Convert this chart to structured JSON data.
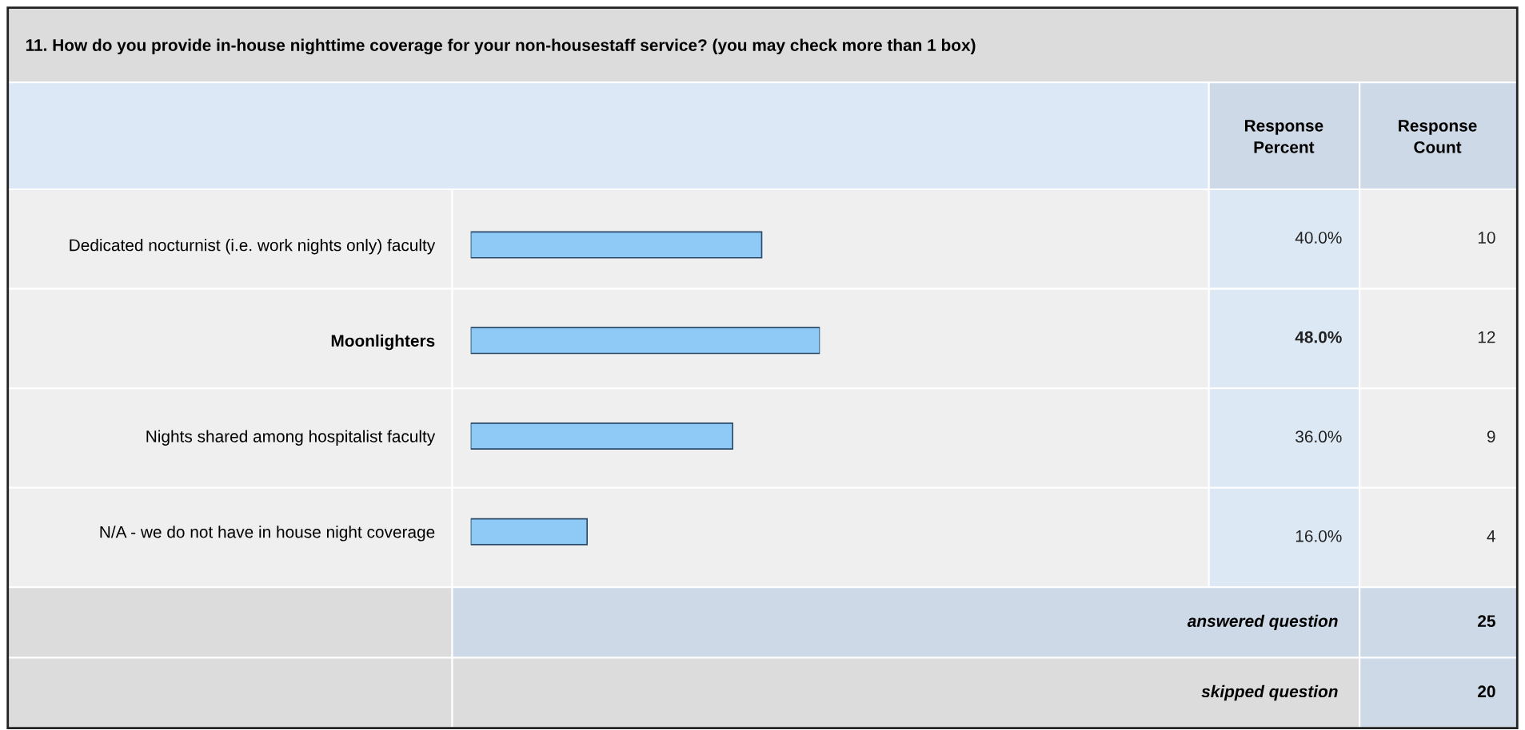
{
  "chart_data": {
    "type": "bar",
    "orientation": "horizontal",
    "title": "11. How do you provide in-house nighttime coverage for your non-housestaff service? (you may check more than 1 box)",
    "categories": [
      "Dedicated nocturnist (i.e. work nights only) faculty",
      "Moonlighters",
      "Nights shared among hospitalist faculty",
      "N/A - we do not have in house night coverage"
    ],
    "values": [
      40,
      48,
      36,
      16
    ],
    "value_labels": [
      "40.0%",
      "48.0%",
      "36.0%",
      "16.0%"
    ],
    "color": "#8fcaf7",
    "tick_labels": "y",
    "annotations": [
      "Response Percent",
      "Response Count",
      "10",
      "12",
      "9",
      "4",
      "answered question",
      "25",
      "skipped question",
      "20"
    ]
  }
}
